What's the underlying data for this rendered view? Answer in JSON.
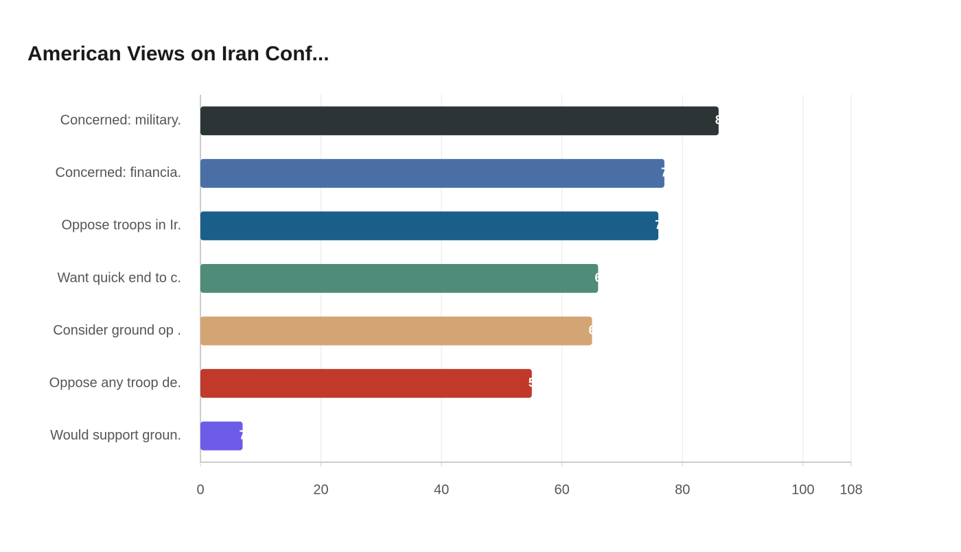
{
  "chart_data": {
    "type": "bar",
    "orientation": "horizontal",
    "title": "American Views on Iran Conf...",
    "categories": [
      "Concerned: military.",
      "Concerned: financia.",
      "Oppose troops in Ir.",
      "Want quick end to c.",
      "Consider ground op .",
      "Oppose any troop de.",
      "Would support groun."
    ],
    "values": [
      86,
      77,
      76,
      66,
      65,
      55,
      7
    ],
    "colors": [
      "#2d3436",
      "#4a6fa5",
      "#1a5f8a",
      "#4f8c7a",
      "#d4a574",
      "#c0392b",
      "#6c5ce7"
    ],
    "xlim": [
      0,
      108
    ],
    "xticks": [
      0,
      20,
      40,
      60,
      80,
      100,
      108
    ],
    "grid": true
  }
}
